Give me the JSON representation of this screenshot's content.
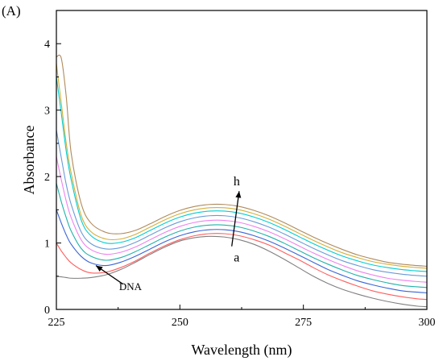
{
  "panel_label": "(A)",
  "chart_data": {
    "type": "line",
    "title": "",
    "xlabel": "Wavelength (nm)",
    "ylabel": "Absorbance",
    "xlim": [
      225,
      300
    ],
    "ylim": [
      0,
      4.5
    ],
    "xticks": [
      225,
      250,
      275,
      300
    ],
    "yticks": [
      0,
      1,
      2,
      3,
      4
    ],
    "grid": false,
    "legend": "none",
    "x": [
      225,
      226,
      227,
      228,
      230,
      232,
      235,
      238,
      241,
      244,
      247,
      250,
      253,
      256,
      259,
      262,
      265,
      268,
      271,
      274,
      277,
      280,
      283,
      286,
      289,
      292,
      295,
      298,
      300
    ],
    "series": [
      {
        "name": "DNA",
        "color": "#7f7f7f",
        "values": [
          0.5,
          0.49,
          0.48,
          0.47,
          0.47,
          0.48,
          0.52,
          0.6,
          0.71,
          0.83,
          0.94,
          1.03,
          1.08,
          1.1,
          1.09,
          1.05,
          0.98,
          0.88,
          0.76,
          0.63,
          0.5,
          0.39,
          0.3,
          0.23,
          0.17,
          0.12,
          0.08,
          0.05,
          0.04
        ]
      },
      {
        "color": "#ff5e5e",
        "values": [
          1.0,
          0.88,
          0.78,
          0.7,
          0.6,
          0.55,
          0.56,
          0.63,
          0.73,
          0.85,
          0.96,
          1.05,
          1.11,
          1.14,
          1.14,
          1.11,
          1.05,
          0.97,
          0.86,
          0.75,
          0.63,
          0.52,
          0.43,
          0.35,
          0.28,
          0.23,
          0.19,
          0.16,
          0.15
        ]
      },
      {
        "color": "#3a64d8",
        "values": [
          1.5,
          1.3,
          1.12,
          0.98,
          0.8,
          0.7,
          0.66,
          0.71,
          0.8,
          0.91,
          1.02,
          1.11,
          1.17,
          1.2,
          1.2,
          1.17,
          1.11,
          1.03,
          0.93,
          0.82,
          0.71,
          0.6,
          0.51,
          0.43,
          0.37,
          0.32,
          0.28,
          0.26,
          0.25
        ]
      },
      {
        "color": "#20b2aa",
        "values": [
          1.9,
          1.62,
          1.38,
          1.18,
          0.92,
          0.8,
          0.74,
          0.78,
          0.87,
          0.98,
          1.09,
          1.18,
          1.24,
          1.27,
          1.27,
          1.24,
          1.18,
          1.1,
          1.0,
          0.89,
          0.78,
          0.68,
          0.59,
          0.51,
          0.45,
          0.4,
          0.36,
          0.34,
          0.33
        ]
      },
      {
        "color": "#ee82ee",
        "values": [
          2.3,
          1.95,
          1.63,
          1.38,
          1.05,
          0.9,
          0.83,
          0.86,
          0.94,
          1.05,
          1.16,
          1.25,
          1.31,
          1.34,
          1.34,
          1.31,
          1.25,
          1.17,
          1.07,
          0.96,
          0.85,
          0.75,
          0.66,
          0.58,
          0.52,
          0.47,
          0.44,
          0.42,
          0.41
        ]
      },
      {
        "color": "#6a9ad8",
        "values": [
          2.7,
          2.28,
          1.88,
          1.58,
          1.17,
          0.99,
          0.91,
          0.93,
          1.01,
          1.12,
          1.23,
          1.32,
          1.38,
          1.41,
          1.41,
          1.38,
          1.32,
          1.24,
          1.14,
          1.03,
          0.92,
          0.82,
          0.73,
          0.66,
          0.6,
          0.56,
          0.53,
          0.51,
          0.5
        ]
      },
      {
        "color": "#00ced1",
        "values": [
          3.5,
          2.95,
          2.38,
          1.95,
          1.35,
          1.11,
          1.0,
          1.01,
          1.08,
          1.19,
          1.3,
          1.39,
          1.45,
          1.48,
          1.48,
          1.45,
          1.39,
          1.31,
          1.21,
          1.1,
          0.99,
          0.89,
          0.8,
          0.73,
          0.67,
          0.63,
          0.6,
          0.58,
          0.57
        ]
      },
      {
        "color": "#d4b03a",
        "values": [
          3.7,
          3.1,
          2.5,
          2.05,
          1.42,
          1.17,
          1.06,
          1.06,
          1.13,
          1.24,
          1.35,
          1.44,
          1.5,
          1.53,
          1.53,
          1.5,
          1.44,
          1.36,
          1.26,
          1.15,
          1.04,
          0.94,
          0.85,
          0.78,
          0.72,
          0.68,
          0.65,
          0.63,
          0.62
        ]
      },
      {
        "color": "#b08a5a",
        "values": [
          3.8,
          3.78,
          3.2,
          2.35,
          1.6,
          1.3,
          1.16,
          1.14,
          1.19,
          1.29,
          1.4,
          1.49,
          1.55,
          1.58,
          1.58,
          1.55,
          1.49,
          1.41,
          1.31,
          1.2,
          1.09,
          0.99,
          0.9,
          0.82,
          0.76,
          0.71,
          0.68,
          0.66,
          0.65
        ]
      }
    ],
    "annotations": [
      {
        "text": "h",
        "x": 261.5,
        "y": 1.93
      },
      {
        "text": "a",
        "x": 261.5,
        "y": 0.78
      },
      {
        "text": "DNA",
        "x": 240,
        "y": 0.35
      }
    ]
  }
}
